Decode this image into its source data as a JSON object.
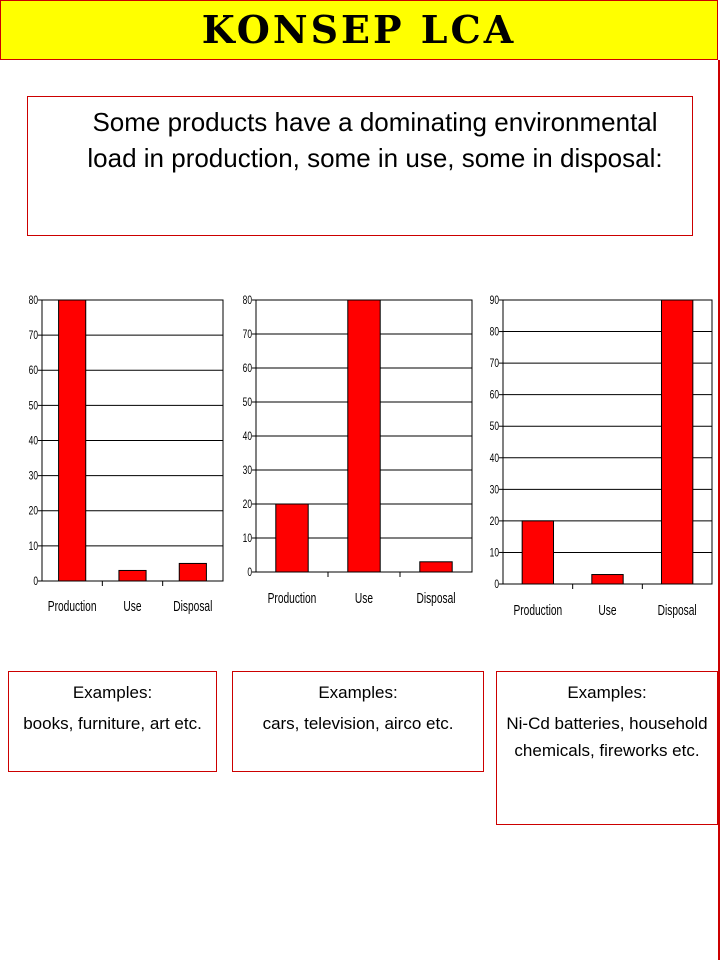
{
  "title": "KONSEP  LCA",
  "intro": "Some products have a dominating environmental load in production, some in use, some in disposal:",
  "colors": {
    "bar": "#ff0000",
    "frame": "#cc0000",
    "title_bg": "#ffff00"
  },
  "chart_data": [
    {
      "type": "bar",
      "categories": [
        "Production",
        "Use",
        "Disposal"
      ],
      "values": [
        80,
        3,
        5
      ],
      "ylim": [
        0,
        80
      ],
      "yticks": [
        0,
        10,
        20,
        30,
        40,
        50,
        60,
        70,
        80
      ],
      "grid": true
    },
    {
      "type": "bar",
      "categories": [
        "Production",
        "Use",
        "Disposal"
      ],
      "values": [
        20,
        80,
        3
      ],
      "ylim": [
        0,
        80
      ],
      "yticks": [
        0,
        10,
        20,
        30,
        40,
        50,
        60,
        70,
        80
      ],
      "grid": true
    },
    {
      "type": "bar",
      "categories": [
        "Production",
        "Use",
        "Disposal"
      ],
      "values": [
        20,
        3,
        90
      ],
      "ylim": [
        0,
        90
      ],
      "yticks": [
        0,
        10,
        20,
        30,
        40,
        50,
        60,
        70,
        80,
        90
      ],
      "grid": true
    }
  ],
  "examples": [
    {
      "heading": "Examples:",
      "text": "books, furniture, art etc."
    },
    {
      "heading": "Examples:",
      "text": "cars, television, airco etc."
    },
    {
      "heading": "Examples:",
      "text": "Ni-Cd batteries, household chemicals, fireworks etc."
    }
  ]
}
